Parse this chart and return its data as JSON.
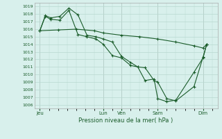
{
  "xlabel": "Pression niveau de la mer( hPa )",
  "bg_color": "#d8f0ec",
  "grid_color": "#b8d8d0",
  "line_color": "#1a5c2a",
  "ylim": [
    1005.5,
    1019.5
  ],
  "yticks": [
    1006,
    1007,
    1008,
    1009,
    1010,
    1011,
    1012,
    1013,
    1014,
    1015,
    1016,
    1017,
    1018,
    1019
  ],
  "xtick_labels": [
    "Jeu",
    "Lun",
    "Ven",
    "Sam",
    "Dim"
  ],
  "xtick_positions": [
    0.0,
    3.5,
    4.5,
    6.5,
    9.0
  ],
  "xlim": [
    -0.3,
    9.8
  ],
  "series": [
    {
      "x": [
        0.0,
        0.3,
        0.6,
        1.1,
        1.6,
        2.1,
        2.6,
        3.1,
        3.5,
        4.0,
        4.5,
        5.0,
        5.4,
        5.8,
        6.3,
        6.5,
        7.0,
        7.5,
        8.5,
        9.0,
        9.2
      ],
      "y": [
        1015.8,
        1017.8,
        1017.5,
        1017.7,
        1018.8,
        1017.9,
        1015.2,
        1015.0,
        1014.7,
        1014.3,
        1012.4,
        1011.6,
        1011.0,
        1010.9,
        1009.2,
        1009.0,
        1006.8,
        1006.5,
        1008.4,
        1012.3,
        1014.0
      ]
    },
    {
      "x": [
        0.0,
        0.3,
        0.6,
        1.1,
        1.6,
        2.1,
        2.6,
        3.1,
        3.5,
        4.0,
        4.5,
        5.0,
        5.4,
        5.8,
        6.3,
        6.5,
        7.0,
        7.5,
        8.5,
        9.0,
        9.2
      ],
      "y": [
        1015.8,
        1017.7,
        1017.3,
        1017.2,
        1018.5,
        1015.3,
        1015.0,
        1014.7,
        1014.0,
        1012.5,
        1012.2,
        1011.2,
        1011.0,
        1009.2,
        1009.4,
        1006.8,
        1006.4,
        1006.6,
        1010.3,
        1012.2,
        1014.0
      ]
    },
    {
      "x": [
        0.0,
        1.0,
        2.0,
        3.0,
        3.5,
        4.5,
        5.5,
        6.5,
        7.5,
        8.5,
        9.0,
        9.2
      ],
      "y": [
        1015.8,
        1015.9,
        1016.0,
        1015.8,
        1015.5,
        1015.2,
        1015.0,
        1014.7,
        1014.3,
        1013.8,
        1013.5,
        1014.0
      ]
    }
  ]
}
